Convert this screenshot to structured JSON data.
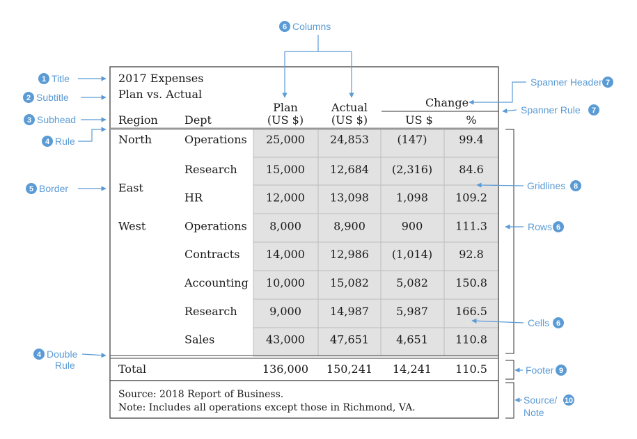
{
  "colors": {
    "accent": "#5b9bd5",
    "cell_fill": "#e2e2e2",
    "grid": "#bcbcbc",
    "ink": "#1a1a1a"
  },
  "table": {
    "title": "2017 Expenses",
    "subtitle": "Plan vs. Actual",
    "spanner": "Change",
    "headers": {
      "region": "Region",
      "dept": "Dept",
      "plan_1": "Plan",
      "plan_2": "(US $)",
      "actual_1": "Actual",
      "actual_2": "(US $)",
      "usd": "US $",
      "pct": "%"
    },
    "rows": [
      {
        "region": "North",
        "dept": "Operations",
        "plan": "25,000",
        "actual": "24,853",
        "usd": "(147)",
        "pct": "99.4"
      },
      {
        "region": "",
        "dept": "Research",
        "plan": "15,000",
        "actual": "12,684",
        "usd": "(2,316)",
        "pct": "84.6"
      },
      {
        "region": "East",
        "dept": "HR",
        "plan": "12,000",
        "actual": "13,098",
        "usd": "1,098",
        "pct": "109.2"
      },
      {
        "region": "West",
        "dept": "Operations",
        "plan": "8,000",
        "actual": "8,900",
        "usd": "900",
        "pct": "111.3"
      },
      {
        "region": "",
        "dept": "Contracts",
        "plan": "14,000",
        "actual": "12,986",
        "usd": "(1,014)",
        "pct": "92.8"
      },
      {
        "region": "",
        "dept": "Accounting",
        "plan": "10,000",
        "actual": "15,082",
        "usd": "5,082",
        "pct": "150.8"
      },
      {
        "region": "",
        "dept": "Research",
        "plan": "9,000",
        "actual": "14,987",
        "usd": "5,987",
        "pct": "166.5"
      },
      {
        "region": "",
        "dept": "Sales",
        "plan": "43,000",
        "actual": "47,651",
        "usd": "4,651",
        "pct": "110.8"
      }
    ],
    "total": {
      "label": "Total",
      "plan": "136,000",
      "actual": "150,241",
      "usd": "14,241",
      "pct": "110.5"
    },
    "source": "Source: 2018 Report of Business.",
    "note": "Note: Includes all operations except those in Richmond, VA."
  },
  "annotations": {
    "title": {
      "num": "1",
      "text": "Title"
    },
    "subtitle": {
      "num": "2",
      "text": "Subtitle"
    },
    "subhead": {
      "num": "3",
      "text": "Subhead"
    },
    "rule": {
      "num": "4",
      "text": "Rule"
    },
    "border": {
      "num": "5",
      "text": "Border"
    },
    "double_rule": {
      "num": "4",
      "text_1": "Double",
      "text_2": "Rule"
    },
    "columns": {
      "num": "6",
      "text": "Columns"
    },
    "spanner_header": {
      "num": "7",
      "text": "Spanner Header"
    },
    "spanner_rule": {
      "num": "7",
      "text": "Spanner Rule"
    },
    "gridlines": {
      "num": "8",
      "text": "Gridlines"
    },
    "rows": {
      "num": "6",
      "text": "Rows"
    },
    "cells": {
      "num": "6",
      "text": "Cells"
    },
    "footer": {
      "num": "9",
      "text": "Footer"
    },
    "source_note": {
      "num": "10",
      "text_1": "Source/",
      "text_2": "Note"
    }
  }
}
